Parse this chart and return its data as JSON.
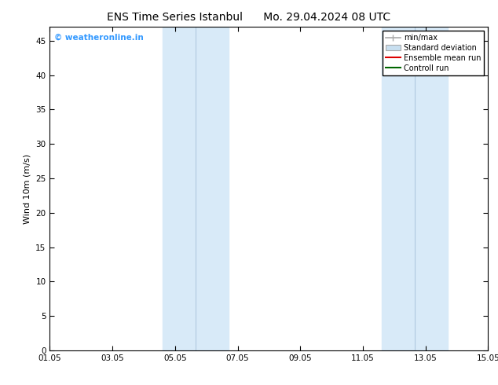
{
  "title_left": "ENS Time Series Istanbul",
  "title_right": "Mo. 29.04.2024 08 UTC",
  "ylabel": "Wind 10m (m/s)",
  "xlim_min": 0,
  "xlim_max": 14,
  "ylim_min": 0,
  "ylim_max": 47,
  "yticks": [
    0,
    5,
    10,
    15,
    20,
    25,
    30,
    35,
    40,
    45
  ],
  "xtick_labels": [
    "01.05",
    "03.05",
    "05.05",
    "07.05",
    "09.05",
    "11.05",
    "13.05",
    "15.05"
  ],
  "xtick_positions": [
    0,
    2,
    4,
    6,
    8,
    10,
    12,
    14
  ],
  "shaded_bands": [
    {
      "x_start": 3.6,
      "x_end": 4.7,
      "color": "#d8eaf8"
    },
    {
      "x_start": 4.7,
      "x_end": 5.7,
      "color": "#d8eaf8"
    },
    {
      "x_start": 10.6,
      "x_end": 11.6,
      "color": "#d8eaf8"
    },
    {
      "x_start": 11.6,
      "x_end": 12.7,
      "color": "#d8eaf8"
    }
  ],
  "legend_entries": [
    {
      "label": "min/max",
      "type": "minmax",
      "color": "#aaaaaa"
    },
    {
      "label": "Standard deviation",
      "type": "patch",
      "color": "#c8dff0",
      "edgecolor": "#aaaaaa"
    },
    {
      "label": "Ensemble mean run",
      "type": "line",
      "color": "#dd0000"
    },
    {
      "label": "Controll run",
      "type": "line",
      "color": "#006600"
    }
  ],
  "watermark_text": "© weatheronline.in",
  "watermark_color": "#3399ff",
  "background_color": "#ffffff",
  "plot_bg_color": "#ffffff",
  "title_fontsize": 10,
  "axis_label_fontsize": 8,
  "tick_fontsize": 7.5,
  "legend_fontsize": 7
}
